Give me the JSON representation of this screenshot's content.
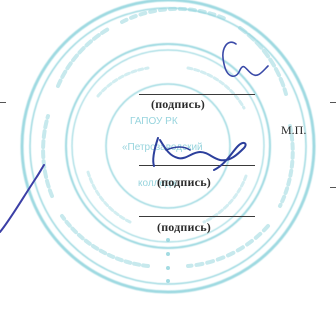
{
  "signature_block": {
    "label_1": "(подпись)",
    "label_2": "(подпись)",
    "label_3": "(подпись)",
    "stamp_place": "М.П."
  },
  "stamp": {
    "visible_text": [
      "ГАПОУ РК",
      "«Петрозаводский",
      "колледж"
    ]
  },
  "colors": {
    "stamp": "#7fd0d9",
    "signature_ink": "#2f3f9e",
    "text": "#2c2c2c"
  }
}
